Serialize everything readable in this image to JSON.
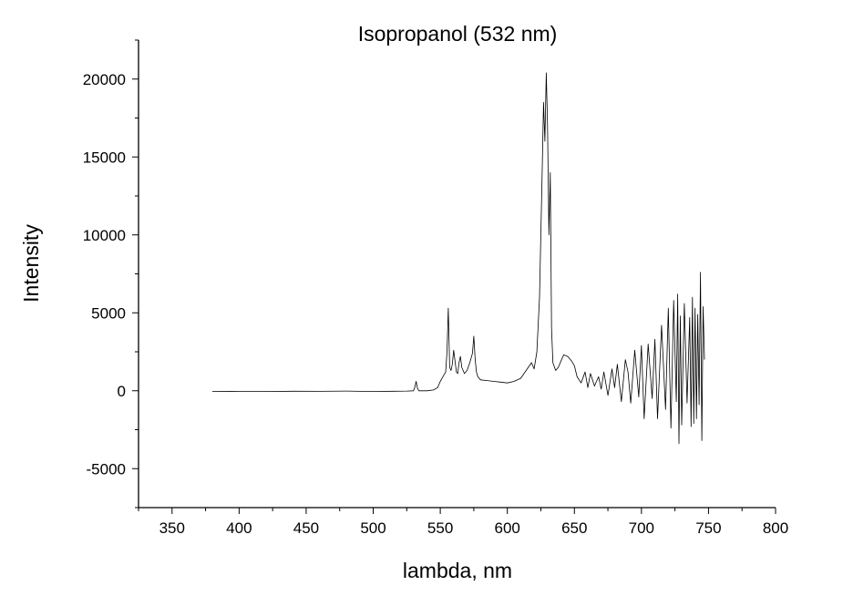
{
  "chart_data": {
    "type": "line",
    "title": "Isopropanol (532 nm)",
    "xlabel": "lambda, nm",
    "ylabel": "Intensity",
    "xlim": [
      325,
      800
    ],
    "ylim": [
      -7500,
      22500
    ],
    "x_ticks": [
      350,
      400,
      450,
      500,
      550,
      600,
      650,
      700,
      750,
      800
    ],
    "y_ticks": [
      -5000,
      0,
      5000,
      10000,
      15000,
      20000
    ],
    "grid": false,
    "legend": "none",
    "series": [
      {
        "color": "#000000",
        "x": [
          380,
          400,
          420,
          440,
          460,
          480,
          500,
          515,
          525,
          530,
          531,
          532,
          533,
          534,
          540,
          545,
          548,
          550,
          552,
          554,
          555,
          556,
          557,
          558,
          559,
          560,
          562,
          563,
          564,
          565,
          566,
          568,
          570,
          572,
          574,
          575,
          576,
          577,
          578,
          580,
          585,
          590,
          595,
          600,
          605,
          610,
          614,
          618,
          620,
          622,
          624,
          626,
          627,
          628,
          629,
          630,
          631,
          632,
          633,
          634,
          636,
          638,
          640,
          642,
          645,
          648,
          650,
          652,
          655,
          658,
          660,
          662,
          665,
          668,
          670,
          672,
          675,
          678,
          680,
          682,
          685,
          688,
          690,
          692,
          695,
          698,
          700,
          702,
          705,
          708,
          710,
          712,
          715,
          718,
          720,
          722,
          724,
          726,
          727,
          728,
          729,
          730,
          732,
          734,
          736,
          737,
          738,
          739,
          740,
          741,
          742,
          743,
          744,
          745,
          746,
          747
        ],
        "y": [
          -50,
          -40,
          -50,
          -30,
          -40,
          -20,
          -50,
          -30,
          -20,
          0,
          200,
          600,
          150,
          0,
          0,
          50,
          200,
          600,
          900,
          1200,
          2500,
          5300,
          1500,
          1300,
          1700,
          2600,
          1200,
          1100,
          1800,
          2200,
          1500,
          1100,
          1300,
          1800,
          2400,
          3500,
          2000,
          1200,
          900,
          700,
          650,
          600,
          550,
          500,
          600,
          800,
          1300,
          1800,
          1400,
          2500,
          6000,
          14000,
          18500,
          16000,
          20400,
          17000,
          10000,
          14000,
          4000,
          1800,
          1300,
          1500,
          1900,
          2300,
          2200,
          1900,
          1600,
          900,
          500,
          1200,
          200,
          1100,
          300,
          900,
          100,
          1200,
          -300,
          1400,
          200,
          1700,
          -700,
          2000,
          1200,
          -800,
          2600,
          -400,
          2900,
          -1800,
          3000,
          -500,
          3300,
          -1800,
          4200,
          -1200,
          5300,
          -2400,
          5800,
          -700,
          6200,
          -3400,
          4800,
          -2200,
          5600,
          -800,
          4700,
          -2300,
          6000,
          -2100,
          5300,
          -1800,
          4900,
          -900,
          7600,
          -3200,
          5400,
          2000
        ]
      }
    ]
  }
}
